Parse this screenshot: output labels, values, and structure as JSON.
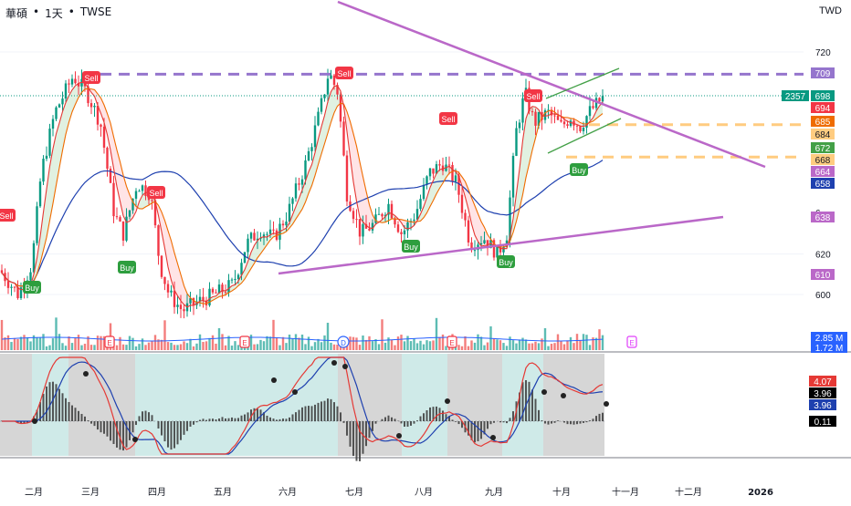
{
  "header": {
    "symbol": "華碩",
    "sep1": "•",
    "interval": "1天",
    "sep2": "•",
    "exchange": "TWSE",
    "currency": "TWD"
  },
  "price_axis": {
    "ticks": [
      {
        "label": "720",
        "value": 720
      },
      {
        "label": "620",
        "value": 620
      },
      {
        "label": "600",
        "value": 600
      }
    ],
    "badges": [
      {
        "text": "709",
        "value": 709,
        "color": "#9575cd"
      },
      {
        "text": "698",
        "value": 698,
        "color": "#089981",
        "prefix": "2357"
      },
      {
        "text": "694",
        "value": 694,
        "color": "#f23645"
      },
      {
        "text": "685",
        "value": 685,
        "color": "#ef6c00"
      },
      {
        "text": "684",
        "value": 684,
        "color": "#ffcc80",
        "dark": true
      },
      {
        "text": "672",
        "value": 672,
        "color": "#43a047"
      },
      {
        "text": "668",
        "value": 668,
        "color": "#ffcc80",
        "dark": true
      },
      {
        "text": "664",
        "value": 664,
        "color": "#ba68c8"
      },
      {
        "text": "658",
        "value": 658,
        "color": "#1e40af"
      },
      {
        "text": "638",
        "value": 638,
        "color": "#ba68c8"
      },
      {
        "text": "610",
        "value": 610,
        "color": "#ba68c8"
      }
    ],
    "partial_tick": "6"
  },
  "volume": {
    "badge1": "2.85 M",
    "badge2": "1.72 M",
    "event_markers": [
      "E",
      "E",
      "D",
      "E",
      "E"
    ]
  },
  "macd": {
    "badges": [
      {
        "text": "4.07",
        "color": "#e53935"
      },
      {
        "text": "3.96",
        "color": "#000000"
      },
      {
        "text": "3.96",
        "color": "#1e40af"
      },
      {
        "text": "0.11",
        "color": "#000000"
      }
    ]
  },
  "time_axis": [
    "二月",
    "三月",
    "四月",
    "五月",
    "六月",
    "七月",
    "八月",
    "九月",
    "十月",
    "十一月",
    "十二月",
    "2026"
  ],
  "signals": [
    {
      "text": "Sell",
      "type": "sell"
    },
    {
      "text": "Sell",
      "type": "sell"
    },
    {
      "text": "Sell",
      "type": "sell"
    },
    {
      "text": "Sell",
      "type": "sell"
    },
    {
      "text": "Sell",
      "type": "sell"
    },
    {
      "text": "Sell",
      "type": "sell"
    },
    {
      "text": "Buy",
      "type": "buy"
    },
    {
      "text": "Buy",
      "type": "buy"
    },
    {
      "text": "Buy",
      "type": "buy"
    },
    {
      "text": "Buy",
      "type": "buy"
    },
    {
      "text": "Buy",
      "type": "buy"
    }
  ],
  "colors": {
    "up": "#089981",
    "down": "#f23645",
    "ma_fast": "#e53935",
    "ma_mid": "#ef6c00",
    "ma_green": "#43a047",
    "ma_slow": "#1e40af",
    "trendline": "#ba68c8",
    "resistance": "#9575cd",
    "support": "#ffcc80"
  }
}
